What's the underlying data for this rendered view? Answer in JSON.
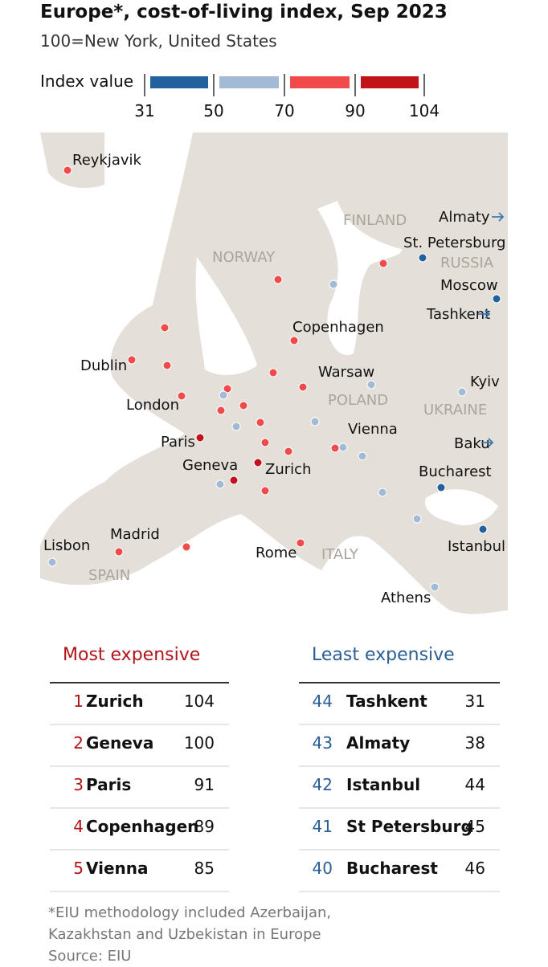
{
  "header": {
    "title": "Europe*, cost-of-living index, Sep 2023",
    "subtitle": "100=New York, United States"
  },
  "legend": {
    "label": "Index value",
    "ticks": [
      31,
      50,
      70,
      90,
      104
    ],
    "colors": [
      "#22609e",
      "#a3bad6",
      "#f04a4a",
      "#c0141a"
    ]
  },
  "map": {
    "cities": [
      "Reykjavik",
      "Almaty",
      "St. Petersburg",
      "Moscow",
      "Tashkent",
      "Copenhagen",
      "Dublin",
      "Warsaw",
      "Kyiv",
      "London",
      "Vienna",
      "Paris",
      "Baku",
      "Geneva",
      "Zurich",
      "Bucharest",
      "Madrid",
      "Lisbon",
      "Istanbul",
      "Rome",
      "Athens"
    ],
    "countries": [
      "FINLAND",
      "RUSSIA",
      "NORWAY",
      "POLAND",
      "UKRAINE",
      "ITALY",
      "SPAIN"
    ]
  },
  "most_expensive": {
    "title": "Most expensive",
    "rows": [
      [
        1,
        "Zurich",
        104
      ],
      [
        2,
        "Geneva",
        100
      ],
      [
        3,
        "Paris",
        91
      ],
      [
        4,
        "Copenhagen",
        89
      ],
      [
        5,
        "Vienna",
        85
      ]
    ]
  },
  "least_expensive": {
    "title": "Least expensive",
    "rows": [
      [
        44,
        "Tashkent",
        31
      ],
      [
        43,
        "Almaty",
        38
      ],
      [
        42,
        "Istanbul",
        44
      ],
      [
        41,
        "St Petersburg",
        45
      ],
      [
        40,
        "Bucharest",
        46
      ]
    ]
  },
  "footer": {
    "note": [
      "*EIU methodology included Azerbaijan,",
      "Kazakhstan and Uzbekistan in Europe"
    ],
    "source": "Source: EIU"
  }
}
